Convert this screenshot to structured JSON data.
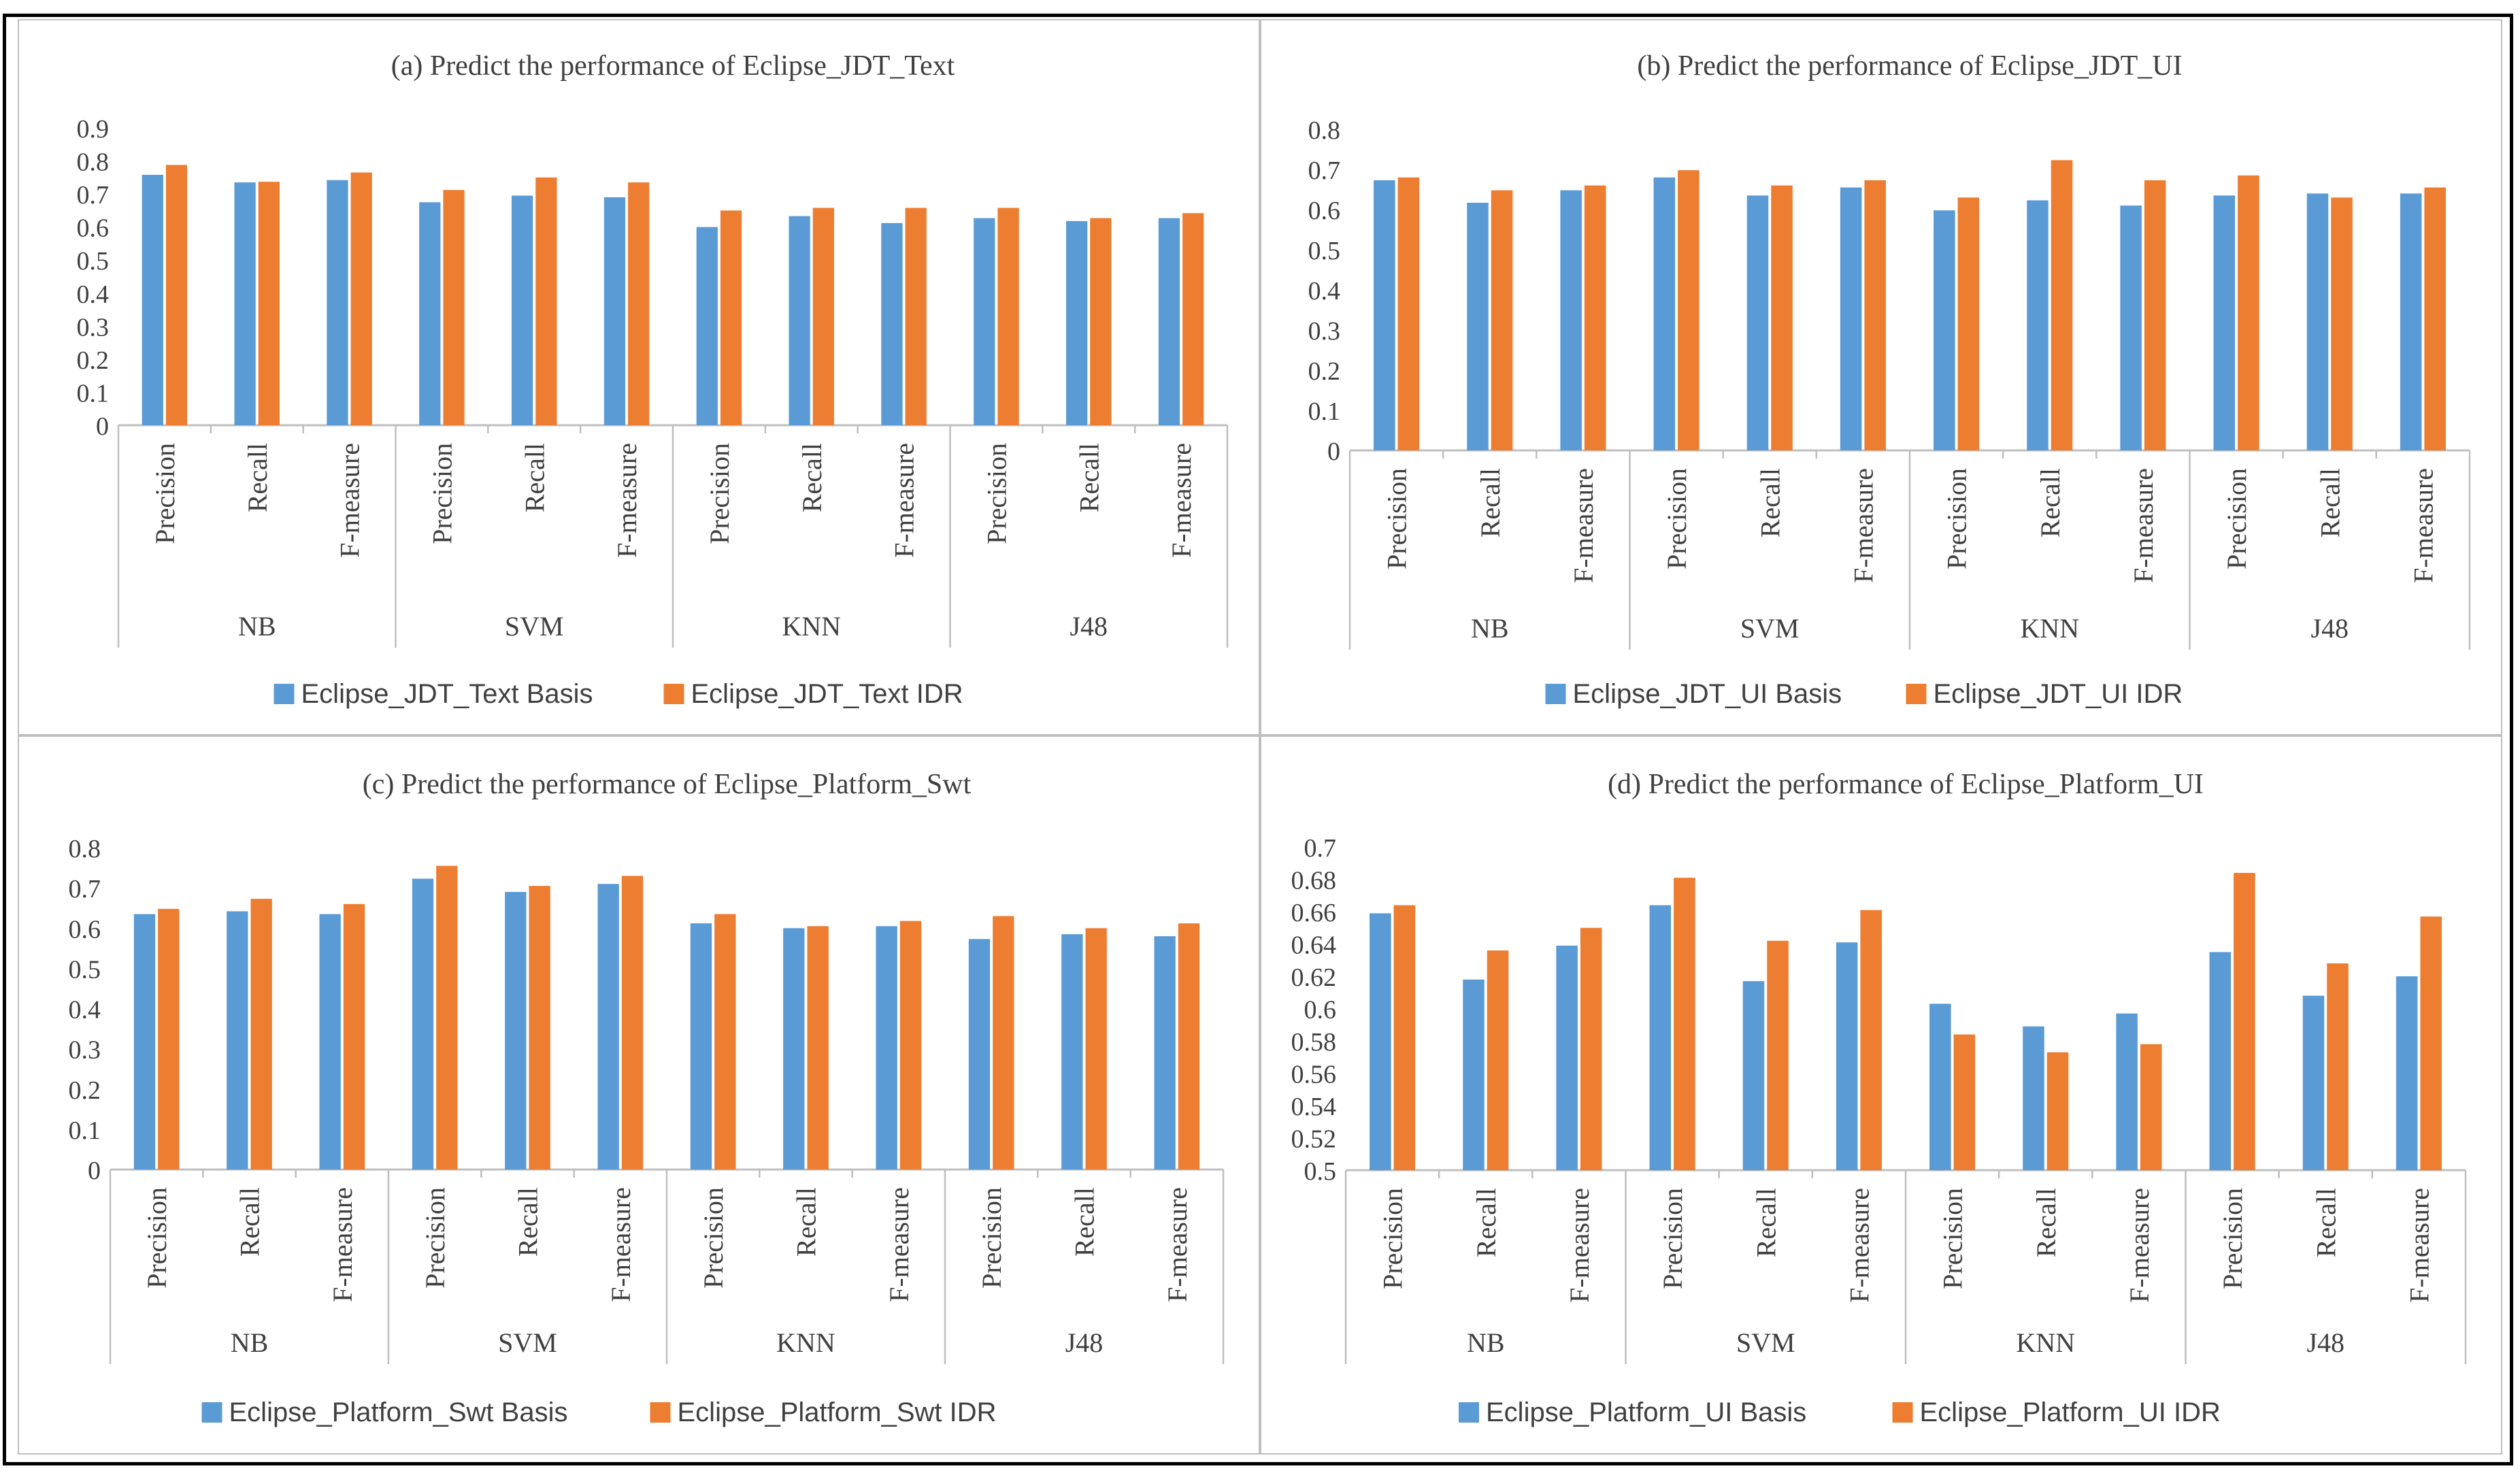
{
  "colors": {
    "basis": "#5b9bd5",
    "idr": "#ed7d31",
    "axis": "#bfbfbf",
    "text": "#404040"
  },
  "metric_labels": [
    "Precision",
    "Recall",
    "F-measure"
  ],
  "group_labels": [
    "NB",
    "SVM",
    "KNN",
    "J48"
  ],
  "chart_data": [
    {
      "type": "bar",
      "title": "(a) Predict the performance of Eclipse_JDT_Text",
      "groups": [
        "NB",
        "SVM",
        "KNN",
        "J48"
      ],
      "categories": [
        "Precision",
        "Recall",
        "F-measure",
        "Precision",
        "Recall",
        "F-measure",
        "Precision",
        "Recall",
        "F-measure",
        "Precision",
        "Recall",
        "F-measure"
      ],
      "series": [
        {
          "name": "Eclipse_JDT_Text Basis",
          "values": [
            0.758,
            0.735,
            0.742,
            0.675,
            0.695,
            0.69,
            0.6,
            0.633,
            0.612,
            0.627,
            0.618,
            0.627
          ]
        },
        {
          "name": "Eclipse_JDT_Text IDR",
          "values": [
            0.788,
            0.737,
            0.765,
            0.712,
            0.75,
            0.735,
            0.65,
            0.658,
            0.658,
            0.658,
            0.627,
            0.642
          ]
        }
      ],
      "ylim": [
        0,
        0.9
      ],
      "yticks": [
        "0",
        "0.1",
        "0.2",
        "0.3",
        "0.4",
        "0.5",
        "0.6",
        "0.7",
        "0.8",
        "0.9"
      ],
      "grid": false,
      "legend": "bottom"
    },
    {
      "type": "bar",
      "title": "(b) Predict the performance of Eclipse_JDT_UI",
      "groups": [
        "NB",
        "SVM",
        "KNN",
        "J48"
      ],
      "categories": [
        "Precision",
        "Recall",
        "F-measure",
        "Precision",
        "Recall",
        "F-measure",
        "Precision",
        "Recall",
        "F-measure",
        "Precision",
        "Recall",
        "F-measure"
      ],
      "series": [
        {
          "name": "Eclipse_JDT_UI Basis",
          "values": [
            0.673,
            0.617,
            0.648,
            0.68,
            0.635,
            0.655,
            0.598,
            0.623,
            0.61,
            0.635,
            0.64,
            0.64
          ]
        },
        {
          "name": "Eclipse_JDT_UI IDR",
          "values": [
            0.68,
            0.648,
            0.66,
            0.698,
            0.66,
            0.673,
            0.63,
            0.723,
            0.673,
            0.685,
            0.63,
            0.655
          ]
        }
      ],
      "ylim": [
        0,
        0.8
      ],
      "yticks": [
        "0",
        "0.1",
        "0.2",
        "0.3",
        "0.4",
        "0.5",
        "0.6",
        "0.7",
        "0.8"
      ],
      "grid": false,
      "legend": "bottom"
    },
    {
      "type": "bar",
      "title": "(c) Predict the performance of Eclipse_Platform_Swt",
      "groups": [
        "NB",
        "SVM",
        "KNN",
        "J48"
      ],
      "categories": [
        "Precision",
        "Recall",
        "F-measure",
        "Precision",
        "Recall",
        "F-measure",
        "Precision",
        "Recall",
        "F-measure",
        "Precision",
        "Recall",
        "F-measure"
      ],
      "series": [
        {
          "name": "Eclipse_Platform_Swt Basis",
          "values": [
            0.635,
            0.642,
            0.635,
            0.723,
            0.69,
            0.71,
            0.612,
            0.6,
            0.605,
            0.573,
            0.585,
            0.58
          ]
        },
        {
          "name": "Eclipse_Platform_Swt IDR",
          "values": [
            0.648,
            0.673,
            0.66,
            0.755,
            0.705,
            0.73,
            0.635,
            0.605,
            0.618,
            0.63,
            0.6,
            0.612
          ]
        }
      ],
      "ylim": [
        0,
        0.8
      ],
      "yticks": [
        "0",
        "0.1",
        "0.2",
        "0.3",
        "0.4",
        "0.5",
        "0.6",
        "0.7",
        "0.8"
      ],
      "grid": false,
      "legend": "bottom"
    },
    {
      "type": "bar",
      "title": "(d) Predict the performance of Eclipse_Platform_UI",
      "groups": [
        "NB",
        "SVM",
        "KNN",
        "J48"
      ],
      "categories": [
        "Precision",
        "Recall",
        "F-measure",
        "Precision",
        "Recall",
        "F-measure",
        "Precision",
        "Recall",
        "F-measure",
        "Precision",
        "Recall",
        "F-measure"
      ],
      "series": [
        {
          "name": "Eclipse_Platform_UI Basis",
          "values": [
            0.659,
            0.618,
            0.639,
            0.664,
            0.617,
            0.641,
            0.603,
            0.589,
            0.597,
            0.635,
            0.608,
            0.62
          ]
        },
        {
          "name": "Eclipse_Platform_UI IDR",
          "values": [
            0.664,
            0.636,
            0.65,
            0.681,
            0.642,
            0.661,
            0.584,
            0.573,
            0.578,
            0.684,
            0.628,
            0.657
          ]
        }
      ],
      "ylim": [
        0.5,
        0.7
      ],
      "yticks": [
        "0.5",
        "0.52",
        "0.54",
        "0.56",
        "0.58",
        "0.6",
        "0.62",
        "0.64",
        "0.66",
        "0.68",
        "0.7"
      ],
      "grid": false,
      "legend": "bottom"
    }
  ]
}
